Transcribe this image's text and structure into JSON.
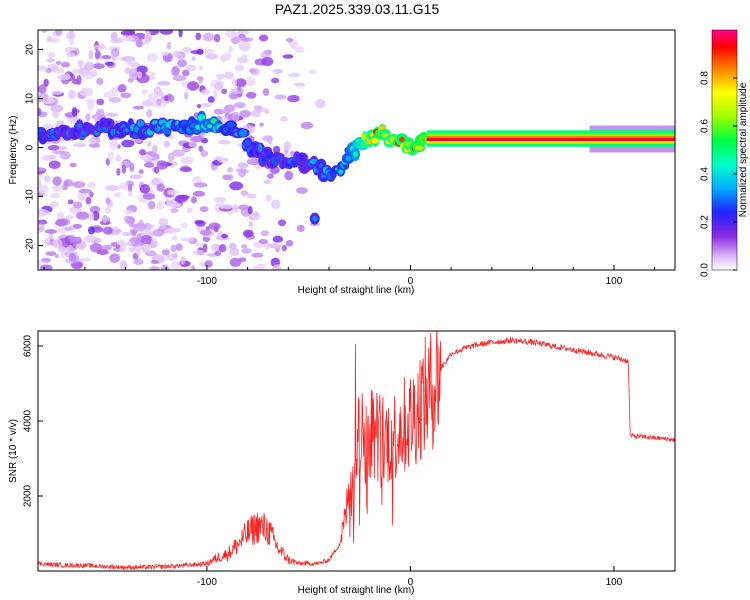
{
  "figure_title": "PAZ1.2025.339.03.11.G15",
  "chart_data": [
    {
      "type": "heatmap",
      "title": "PAZ1.2025.339.03.11.G15",
      "xlabel": "Height of straight line (km)",
      "ylabel": "Frequency (Hz)",
      "xlim": [
        -183,
        130
      ],
      "ylim": [
        -25,
        24
      ],
      "xticks": [
        -100,
        0,
        100
      ],
      "yticks": [
        -20,
        -10,
        0,
        10,
        20
      ],
      "colorbar": {
        "label": "Normalized spectral amplitude",
        "range": [
          0,
          1
        ],
        "ticks": [
          "0.0",
          "0.2",
          "0.4",
          "0.6",
          "0.8"
        ],
        "colors": [
          "#ffffff",
          "#d8b0f8",
          "#8a2be2",
          "#2222ff",
          "#00c8ff",
          "#00ff80",
          "#90ff00",
          "#ffff00",
          "#ff8000",
          "#ff0000",
          "#ff0090"
        ]
      },
      "ridge": {
        "description_points_x": [
          -183,
          -170,
          -160,
          -150,
          -140,
          -130,
          -120,
          -110,
          -100,
          -95,
          -90,
          -85,
          -80,
          -75,
          -70,
          -65,
          -60,
          -55,
          -50,
          -45,
          -40,
          -35,
          -30,
          -25,
          -20,
          -15,
          -10,
          -5,
          0,
          5,
          10,
          20,
          40,
          60,
          80,
          100,
          110,
          120,
          130
        ],
        "frequency_hz": [
          3,
          3,
          3.5,
          4,
          3.5,
          4,
          4,
          4.5,
          5,
          5,
          4,
          3,
          1,
          -1,
          -2,
          -3,
          -4,
          -3,
          -3,
          -4,
          -5,
          -4,
          -2,
          0,
          2,
          3,
          2,
          1,
          0,
          1,
          2,
          2,
          2,
          2,
          2,
          2,
          2,
          2,
          2
        ],
        "amplitude": [
          0.35,
          0.3,
          0.3,
          0.3,
          0.35,
          0.35,
          0.35,
          0.4,
          0.5,
          0.45,
          0.4,
          0.35,
          0.35,
          0.3,
          0.3,
          0.3,
          0.3,
          0.3,
          0.3,
          0.35,
          0.35,
          0.4,
          0.45,
          0.6,
          0.8,
          0.9,
          0.8,
          0.85,
          0.85,
          0.9,
          0.95,
          1.0,
          1.0,
          1.0,
          1.0,
          1.0,
          1.0,
          1.0,
          1.0
        ]
      }
    },
    {
      "type": "line",
      "xlabel": "Height of straight line (km)",
      "ylabel": "SNR (10 * v/v)",
      "xlim": [
        -183,
        130
      ],
      "ylim": [
        0,
        6400
      ],
      "xticks": [
        -100,
        0,
        100
      ],
      "yticks": [
        2000,
        4000,
        6000
      ],
      "color": "#ff2020",
      "series": [
        {
          "name": "SNR",
          "x": [
            -183,
            -170,
            -160,
            -150,
            -140,
            -130,
            -120,
            -110,
            -100,
            -95,
            -90,
            -85,
            -80,
            -75,
            -70,
            -65,
            -60,
            -55,
            -50,
            -45,
            -40,
            -35,
            -32,
            -30,
            -28,
            -25,
            -22,
            -20,
            -15,
            -10,
            -5,
            0,
            5,
            10,
            15,
            20,
            30,
            40,
            50,
            60,
            70,
            80,
            90,
            100,
            107,
            108,
            110,
            120,
            130
          ],
          "y": [
            200,
            150,
            150,
            120,
            100,
            100,
            120,
            150,
            200,
            350,
            450,
            700,
            1000,
            1200,
            1100,
            600,
            300,
            200,
            200,
            200,
            300,
            700,
            1400,
            2200,
            3000,
            3700,
            3500,
            3800,
            3600,
            3500,
            3800,
            4000,
            4500,
            4800,
            5400,
            5800,
            6000,
            6100,
            6150,
            6100,
            6000,
            5900,
            5800,
            5700,
            5600,
            3600,
            3600,
            3550,
            3500
          ]
        }
      ]
    }
  ]
}
